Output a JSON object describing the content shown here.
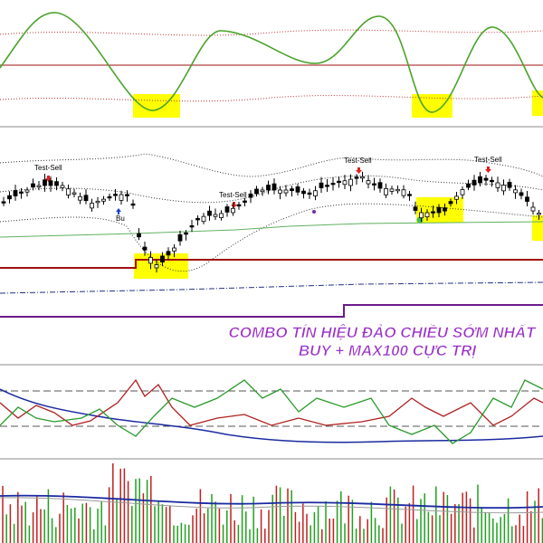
{
  "signals": {
    "test_sell": [
      "Test-Sell",
      "Test-Sell",
      "Test-Sell",
      "Test-Sell"
    ],
    "buy": "Bu"
  },
  "banner": {
    "line1": "COMBO TÍN HIỆU ĐẢO CHIỀU SỚM NHẤT",
    "line2": "BUY + MAX100 CỰC TRỊ"
  }
}
